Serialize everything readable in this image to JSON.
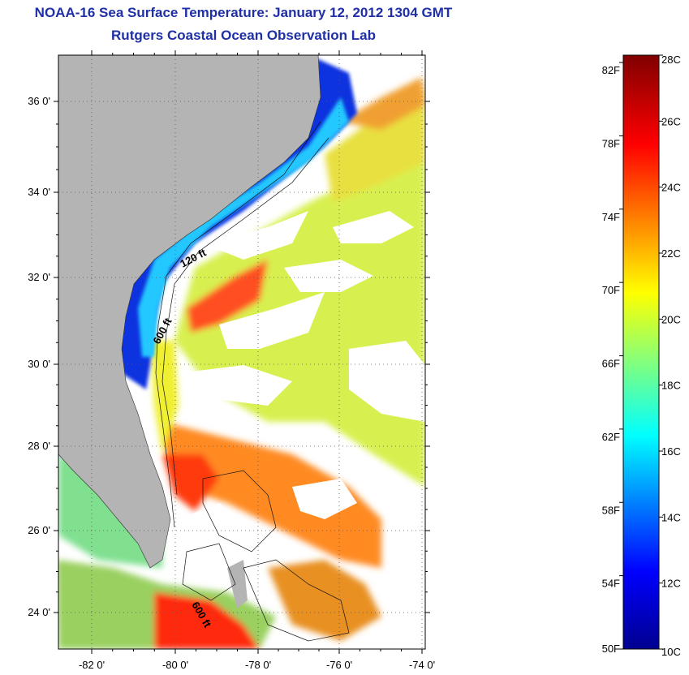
{
  "title": "NOAA-16 Sea Surface Temperature:  January 12, 2012 1304 GMT",
  "subtitle": "Rutgers Coastal Ocean Observation Lab",
  "map": {
    "lat_ticks": [
      "36 0'",
      "34 0'",
      "32 0'",
      "30 0'",
      "28 0'",
      "26 0'",
      "24 0'"
    ],
    "lon_ticks": [
      "-82 0'",
      "-80 0'",
      "-78 0'",
      "-76 0'",
      "-74 0'"
    ],
    "contour_labels": [
      "120 ft",
      "600 ft",
      "600 ft"
    ],
    "colors": {
      "land": "#b4b4b4",
      "cloud": "#ffffff"
    }
  },
  "colorbar": {
    "f_labels": [
      "82F",
      "78F",
      "74F",
      "70F",
      "66F",
      "62F",
      "58F",
      "54F",
      "50F"
    ],
    "c_labels": [
      "28C",
      "26C",
      "24C",
      "22C",
      "20C",
      "18C",
      "16C",
      "14C",
      "12C",
      "10C"
    ],
    "min_c": 10,
    "max_c": 28
  }
}
